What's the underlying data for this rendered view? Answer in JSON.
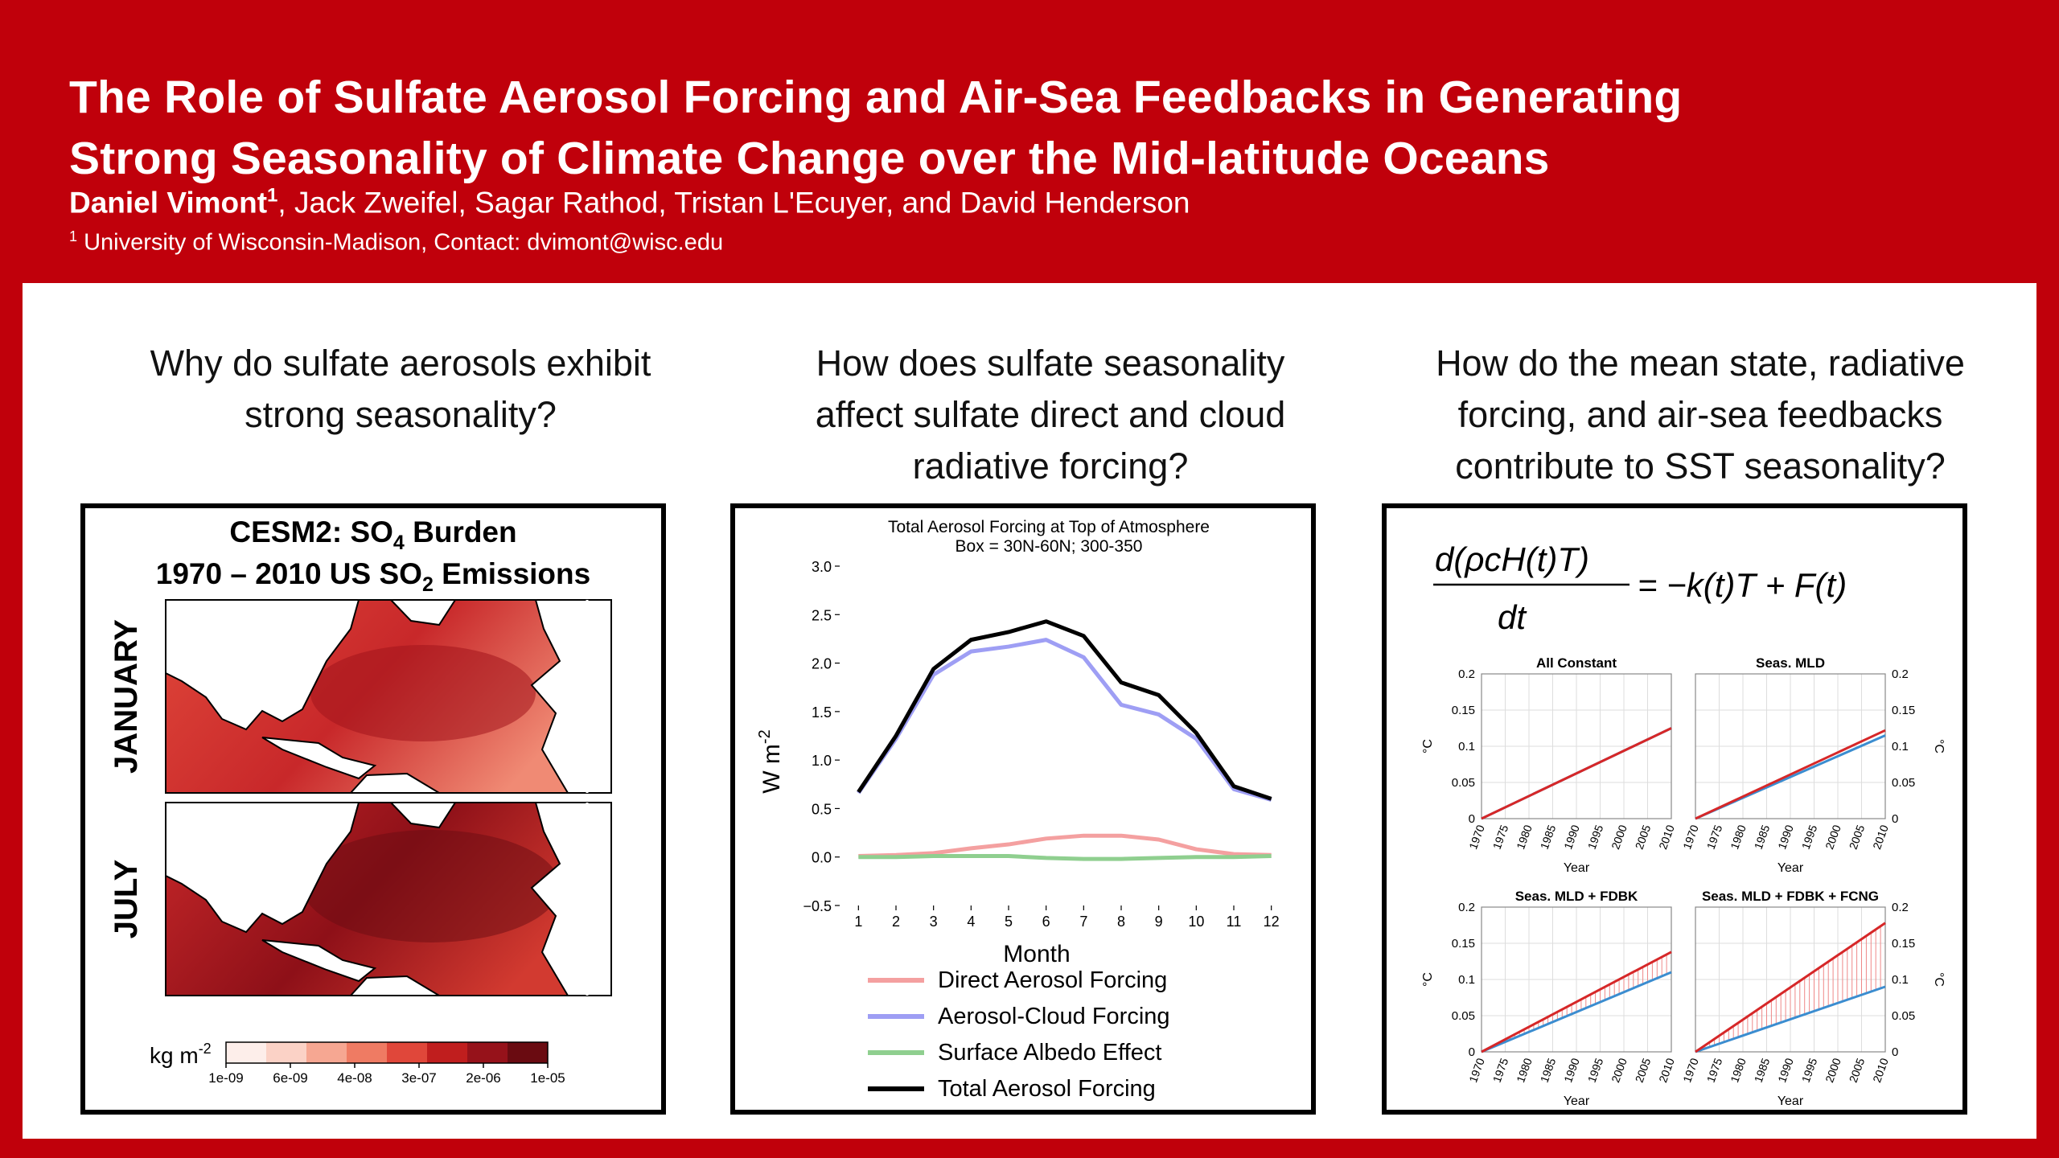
{
  "header": {
    "title_line1": "The Role of Sulfate Aerosol Forcing and Air-Sea Feedbacks in Generating",
    "title_line2": "Strong Seasonality of Climate Change over the Mid-latitude Oceans",
    "lead_author": "Daniel Vimont",
    "lead_author_sup": "1",
    "other_authors": ", Jack Zweifel, Sagar Rathod, Tristan L'Ecuyer, and David Henderson",
    "affiliation_sup": "1",
    "affiliation": "University of Wisconsin-Madison, Contact: dvimont@wisc.edu"
  },
  "questions": {
    "q1": [
      "Why do sulfate aerosols exhibit",
      "strong seasonality?"
    ],
    "q2": [
      "How does sulfate seasonality",
      "affect sulfate direct and cloud",
      "radiative forcing?"
    ],
    "q3": [
      "How do the mean state, radiative",
      "forcing, and air-sea feedbacks",
      "contribute to SST seasonality?"
    ]
  },
  "map_panel": {
    "title1_prefix": "CESM2: SO",
    "title1_sub": "4",
    "title1_suffix": " Burden",
    "title2_prefix": "1970 – 2010 US SO",
    "title2_sub": "2",
    "title2_suffix": " Emissions",
    "row_labels": [
      "JANUARY",
      "JULY"
    ],
    "colorbar_label": "kg m",
    "colorbar_label_sup": "-2",
    "colorbar_ticks": [
      "1e-09",
      "6e-09",
      "4e-08",
      "3e-07",
      "2e-06",
      "1e-05"
    ],
    "colorbar_colors": [
      "#fdeeea",
      "#fbd2c6",
      "#f6a792",
      "#ef7b63",
      "#e0473a",
      "#c01e1e",
      "#96121a",
      "#6a0b11"
    ],
    "ocean_colors": {
      "low": "#f6a792",
      "mid": "#e0473a",
      "high": "#a3141c"
    }
  },
  "chart_data": [
    {
      "type": "line",
      "title": "Total Aerosol Forcing at Top of Atmosphere",
      "subtitle": "Box = 30N-60N; 300-350",
      "xlabel": "Month",
      "ylabel": "W m",
      "ylabel_sup": "-2",
      "x": [
        1,
        2,
        3,
        4,
        5,
        6,
        7,
        8,
        9,
        10,
        11,
        12
      ],
      "xticks": [
        "1",
        "2",
        "3",
        "4",
        "5",
        "6",
        "7",
        "8",
        "9",
        "10",
        "11",
        "12"
      ],
      "ylim": [
        -0.5,
        3.0
      ],
      "yticks": [
        "−0.5",
        "0.0",
        "0.5",
        "1.0",
        "1.5",
        "2.0",
        "2.5",
        "3.0"
      ],
      "legend_position": "bottom",
      "series": [
        {
          "name": "Direct Aerosol Forcing",
          "color": "#f4a0a0",
          "values": [
            0.01,
            0.02,
            0.04,
            0.09,
            0.13,
            0.19,
            0.22,
            0.22,
            0.18,
            0.08,
            0.03,
            0.02
          ]
        },
        {
          "name": "Aerosol-Cloud Forcing",
          "color": "#9e9ef4",
          "values": [
            0.66,
            1.22,
            1.88,
            2.12,
            2.17,
            2.24,
            2.06,
            1.57,
            1.47,
            1.22,
            0.7,
            0.59
          ]
        },
        {
          "name": "Surface Albedo Effect",
          "color": "#8fcf8f",
          "values": [
            0.0,
            0.0,
            0.01,
            0.01,
            0.01,
            -0.01,
            -0.02,
            -0.02,
            -0.01,
            0.0,
            0.0,
            0.01
          ]
        },
        {
          "name": "Total Aerosol Forcing",
          "color": "#000000",
          "values": [
            0.67,
            1.25,
            1.94,
            2.24,
            2.32,
            2.43,
            2.28,
            1.8,
            1.67,
            1.28,
            0.73,
            0.6
          ]
        }
      ]
    },
    {
      "type": "line",
      "title": "All Constant",
      "xlabel": "Year",
      "ylabel": "°C",
      "x": [
        1970,
        2010
      ],
      "ylim": [
        0,
        0.2
      ],
      "yticks": [
        "0.2",
        "0.15",
        "0.1",
        "0.05",
        "0"
      ],
      "xticks": [
        "1970",
        "1975",
        "1980",
        "1985",
        "1990",
        "1995",
        "2000",
        "2005",
        "2010"
      ],
      "series": [
        {
          "color": "#d62728",
          "values": [
            0,
            0.125
          ]
        },
        {
          "color": "#3b8dd0",
          "values": [
            0,
            0.125
          ]
        }
      ],
      "shaded": false
    },
    {
      "type": "line",
      "title": "Seas. MLD",
      "xlabel": "Year",
      "ylabel": "°C",
      "x": [
        1970,
        2010
      ],
      "ylim": [
        0,
        0.2
      ],
      "yticks": [
        "0.2",
        "0.15",
        "0.1",
        "0.05",
        "0"
      ],
      "xticks": [
        "1970",
        "1975",
        "1980",
        "1985",
        "1990",
        "1995",
        "2000",
        "2005",
        "2010"
      ],
      "series": [
        {
          "color": "#d62728",
          "values": [
            0,
            0.122
          ]
        },
        {
          "color": "#3b8dd0",
          "values": [
            0,
            0.115
          ]
        }
      ],
      "shaded": false
    },
    {
      "type": "line",
      "title": "Seas. MLD + FDBK",
      "xlabel": "Year",
      "ylabel": "°C",
      "x": [
        1970,
        2010
      ],
      "ylim": [
        0,
        0.2
      ],
      "yticks": [
        "0.2",
        "0.15",
        "0.1",
        "0.05",
        "0"
      ],
      "xticks": [
        "1970",
        "1975",
        "1980",
        "1985",
        "1990",
        "1995",
        "2000",
        "2005",
        "2010"
      ],
      "series": [
        {
          "color": "#d62728",
          "values": [
            0,
            0.138
          ]
        },
        {
          "color": "#3b8dd0",
          "values": [
            0,
            0.11
          ]
        }
      ],
      "shaded": true
    },
    {
      "type": "line",
      "title": "Seas. MLD + FDBK + FCNG",
      "xlabel": "Year",
      "ylabel": "°C",
      "x": [
        1970,
        2010
      ],
      "ylim": [
        0,
        0.2
      ],
      "yticks": [
        "0.2",
        "0.15",
        "0.1",
        "0.05",
        "0"
      ],
      "xticks": [
        "1970",
        "1975",
        "1980",
        "1985",
        "1990",
        "1995",
        "2000",
        "2005",
        "2010"
      ],
      "series": [
        {
          "color": "#d62728",
          "values": [
            0,
            0.178
          ]
        },
        {
          "color": "#3b8dd0",
          "values": [
            0,
            0.09
          ]
        }
      ],
      "shaded": true
    }
  ]
}
